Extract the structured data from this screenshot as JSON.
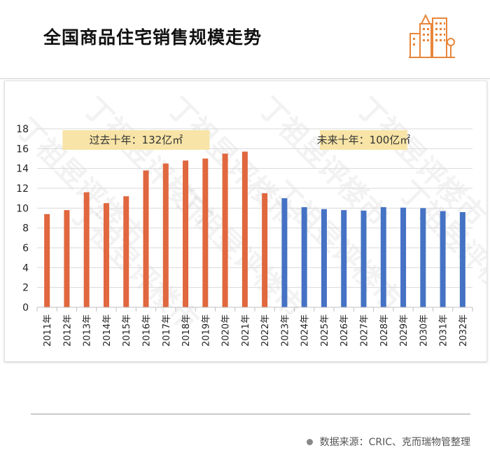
{
  "header": {
    "title": "全国商品住宅销售规模走势"
  },
  "footer": {
    "source": "数据来源：CRIC、克而瑞物管整理"
  },
  "logo": {
    "icon": "city-buildings-icon",
    "color": "#e8863a"
  },
  "watermark": {
    "text": "丁祖昱评楼市"
  },
  "chart_data": {
    "type": "bar",
    "title": "",
    "xlabel": "",
    "ylabel": "",
    "ylim": [
      0,
      18
    ],
    "yticks": [
      0,
      2,
      4,
      6,
      8,
      10,
      12,
      14,
      16,
      18
    ],
    "grid": true,
    "categories": [
      "2011年",
      "2012年",
      "2013年",
      "2014年",
      "2015年",
      "2016年",
      "2017年",
      "2018年",
      "2019年",
      "2020年",
      "2021年",
      "2022年",
      "2023年",
      "2024年",
      "2025年",
      "2026年",
      "2027年",
      "2028年",
      "2029年",
      "2030年",
      "2031年",
      "2032年"
    ],
    "values": [
      9.4,
      9.8,
      11.6,
      10.5,
      11.2,
      13.8,
      14.5,
      14.8,
      15.0,
      15.5,
      15.7,
      11.5,
      11.0,
      10.1,
      9.9,
      9.8,
      9.75,
      10.1,
      10.05,
      10.0,
      9.7,
      9.6
    ],
    "colors": {
      "past": "#e0673e",
      "future": "#4572c4",
      "grid": "#d9d9d9",
      "callout_bg": "#f7e4a6"
    },
    "split_index": 12,
    "annotations": [
      {
        "text": "过去十年：132亿㎡",
        "span": [
          1,
          8
        ]
      },
      {
        "text": "未来十年：100亿㎡",
        "span": [
          14,
          18
        ]
      }
    ]
  }
}
